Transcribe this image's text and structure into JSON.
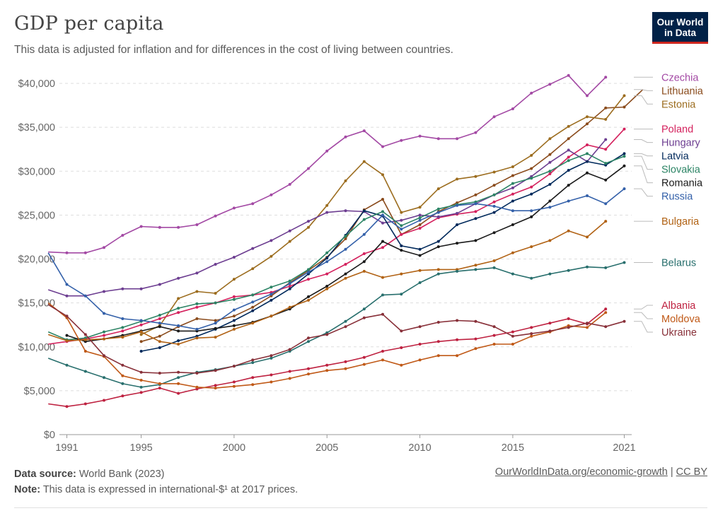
{
  "header": {
    "title": "GDP per capita",
    "subtitle": "This data is adjusted for inflation and for differences in the cost of living between countries.",
    "logo_line1": "Our World",
    "logo_line2": "in Data"
  },
  "footer": {
    "source_label": "Data source:",
    "source_text": " World Bank (2023)",
    "note_label": "Note:",
    "note_text": " This data is expressed in international-$¹ at 2017 prices.",
    "link_text": "OurWorldInData.org/economic-growth",
    "separator": " | ",
    "license": "CC BY"
  },
  "chart_data": {
    "type": "line",
    "title": "GDP per capita",
    "x_ticks": [
      "1991",
      "1995",
      "2000",
      "2005",
      "2010",
      "2015",
      "2021"
    ],
    "y_ticks": [
      "$0",
      "$5,000",
      "$10,000",
      "$15,000",
      "$20,000",
      "$25,000",
      "$30,000",
      "$35,000",
      "$40,000"
    ],
    "xlim": [
      1990.6,
      2021.4
    ],
    "ylim": [
      0,
      40000
    ],
    "grid": true,
    "series": [
      {
        "name": "Czechia",
        "color": "#a349a4",
        "start": 1990,
        "values": [
          20800,
          20700,
          20700,
          21300,
          22700,
          23700,
          23600,
          23600,
          23900,
          24900,
          25800,
          26300,
          27300,
          28500,
          30300,
          32300,
          33900,
          34600,
          32800,
          33500,
          34000,
          33700,
          33700,
          34400,
          36200,
          37100,
          38900,
          39900,
          40900,
          38600,
          40700
        ]
      },
      {
        "name": "Lithuania",
        "color": "#8a4b1c",
        "start": 1995,
        "values": [
          10600,
          11200,
          12300,
          13200,
          13000,
          13500,
          14500,
          15800,
          17300,
          18700,
          20200,
          22300,
          25600,
          26800,
          22800,
          23900,
          25400,
          26400,
          27300,
          28400,
          29500,
          30300,
          31900,
          33700,
          35400,
          37200,
          37300,
          39300
        ]
      },
      {
        "name": "Estonia",
        "color": "#9c6d1f",
        "start": 1995,
        "values": [
          11400,
          12400,
          15500,
          16300,
          16100,
          17700,
          18900,
          20300,
          22000,
          23600,
          26100,
          28900,
          31100,
          29600,
          25300,
          25900,
          28000,
          29100,
          29400,
          29900,
          30500,
          31800,
          33700,
          35100,
          36200,
          35900,
          38600
        ]
      },
      {
        "name": "Poland",
        "color": "#d4215d",
        "start": 1990,
        "values": [
          10300,
          10600,
          10900,
          11300,
          11800,
          12500,
          13200,
          13900,
          14500,
          15000,
          15700,
          15900,
          16200,
          16900,
          17700,
          18300,
          19400,
          20600,
          21300,
          22800,
          23500,
          24700,
          25100,
          25400,
          26500,
          27400,
          28200,
          29700,
          31600,
          33000,
          32500,
          34800
        ]
      },
      {
        "name": "Hungary",
        "color": "#6d3e91",
        "start": 1990,
        "values": [
          16500,
          15800,
          15800,
          16300,
          16600,
          16600,
          17100,
          17800,
          18400,
          19400,
          20200,
          21200,
          22100,
          23200,
          24300,
          25300,
          25500,
          25400,
          24100,
          24400,
          25000,
          24800,
          25200,
          26300,
          27300,
          28100,
          29400,
          31000,
          32400,
          31100,
          33600
        ]
      },
      {
        "name": "Latvia",
        "color": "#00295b",
        "start": 1995,
        "values": [
          9500,
          9900,
          10700,
          11200,
          12000,
          13000,
          14100,
          15300,
          16600,
          18300,
          20100,
          22700,
          25500,
          24900,
          21500,
          21100,
          22000,
          23900,
          24600,
          25300,
          26600,
          27400,
          28500,
          30100,
          31100,
          30700,
          32000
        ]
      },
      {
        "name": "Slovakia",
        "color": "#2c8465",
        "start": 1990,
        "values": [
          11700,
          10800,
          11000,
          11700,
          12200,
          12900,
          13600,
          14400,
          14900,
          15000,
          15400,
          15900,
          16800,
          17500,
          18800,
          20700,
          22600,
          24500,
          25400,
          23800,
          24700,
          25700,
          26200,
          26500,
          27300,
          28600,
          29200,
          30000,
          31200,
          32000,
          30900,
          31700
        ]
      },
      {
        "name": "Romania",
        "color": "#1a1a1a",
        "start": 1991,
        "values": [
          11300,
          10600,
          10900,
          11300,
          11800,
          12300,
          11800,
          11800,
          12100,
          12400,
          12800,
          13500,
          14300,
          15700,
          16900,
          18300,
          19700,
          22000,
          21000,
          20400,
          21400,
          21800,
          22100,
          23000,
          23900,
          24800,
          26600,
          28400,
          29800,
          29000,
          30600
        ]
      },
      {
        "name": "Russia",
        "color": "#3360a9",
        "start": 1990,
        "values": [
          20700,
          17100,
          15800,
          13800,
          13200,
          13000,
          12700,
          12400,
          12000,
          12700,
          14200,
          15100,
          16000,
          17200,
          18500,
          19700,
          21100,
          22800,
          25000,
          23400,
          24400,
          25300,
          26100,
          26300,
          26000,
          25500,
          25500,
          25900,
          26600,
          27200,
          26300,
          28000
        ]
      },
      {
        "name": "Bulgaria",
        "color": "#b16214",
        "start": 1990,
        "values": [
          11400,
          10700,
          10800,
          10900,
          11100,
          11700,
          10600,
          10300,
          11000,
          11100,
          12000,
          12700,
          13500,
          14500,
          15300,
          16600,
          17800,
          18600,
          17900,
          18300,
          18700,
          18800,
          18800,
          19300,
          19800,
          20700,
          21400,
          22100,
          23200,
          22500,
          24300
        ]
      },
      {
        "name": "Belarus",
        "color": "#286f6d",
        "start": 1990,
        "values": [
          8700,
          7900,
          7200,
          6500,
          5800,
          5400,
          5700,
          6500,
          7100,
          7400,
          7800,
          8200,
          8700,
          9500,
          10600,
          11600,
          12900,
          14300,
          15900,
          16000,
          17300,
          18300,
          18600,
          18800,
          19000,
          18300,
          17800,
          18300,
          18700,
          19100,
          19000,
          19600
        ]
      },
      {
        "name": "Albania",
        "color": "#be2140",
        "start": 1990,
        "values": [
          3500,
          3200,
          3500,
          3900,
          4400,
          4800,
          5300,
          4700,
          5200,
          5600,
          6000,
          6500,
          6800,
          7200,
          7500,
          7900,
          8300,
          8800,
          9500,
          9900,
          10300,
          10600,
          10800,
          10900,
          11300,
          11700,
          12200,
          12700,
          13200,
          12600,
          14300
        ]
      },
      {
        "name": "Moldova",
        "color": "#c05917",
        "start": 1990,
        "values": [
          15000,
          13300,
          9500,
          8900,
          6700,
          6200,
          5800,
          5800,
          5400,
          5300,
          5500,
          5700,
          6000,
          6400,
          6900,
          7300,
          7500,
          8000,
          8500,
          7900,
          8500,
          9000,
          9000,
          9800,
          10300,
          10300,
          11200,
          11700,
          12400,
          12200,
          13900
        ]
      },
      {
        "name": "Ukraine",
        "color": "#883039",
        "start": 1990,
        "values": [
          14800,
          13500,
          11400,
          9000,
          7900,
          7100,
          7000,
          7100,
          7000,
          7300,
          7800,
          8500,
          9000,
          9700,
          11000,
          11400,
          12300,
          13300,
          13700,
          11800,
          12300,
          12800,
          13000,
          12900,
          12300,
          11200,
          11500,
          11800,
          12200,
          12700,
          12300,
          12900
        ]
      }
    ]
  }
}
